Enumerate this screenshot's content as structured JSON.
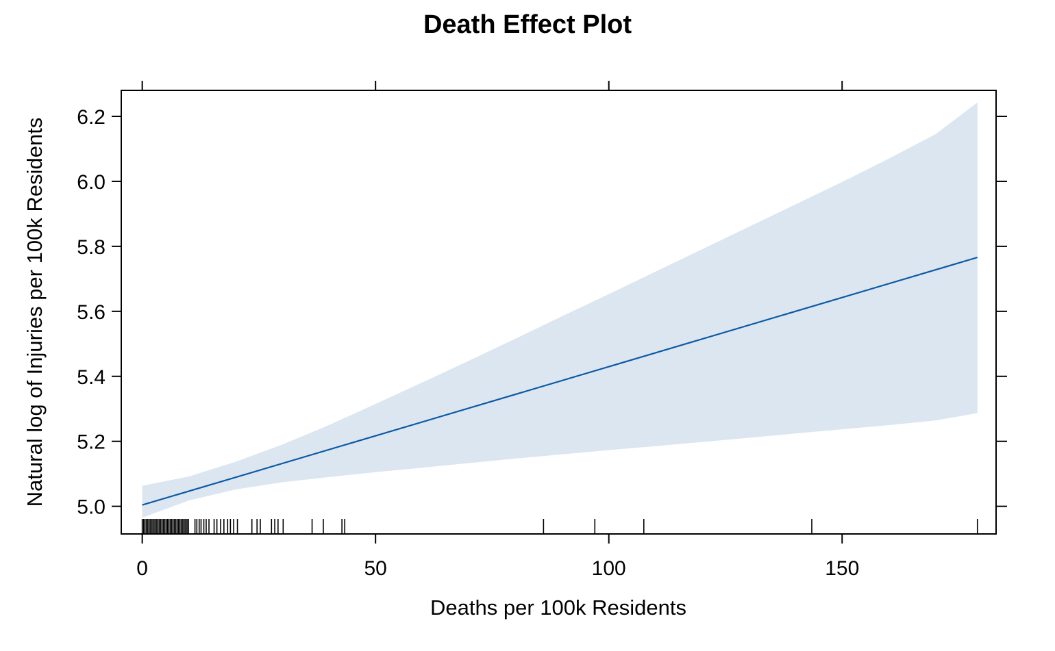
{
  "chart_data": {
    "type": "line",
    "title": "Death Effect Plot",
    "xlabel": "Deaths per 100k Residents",
    "ylabel": "Natural log of Injuries per 100k Residents",
    "xlim": [
      -4.5,
      183
    ],
    "ylim": [
      4.915,
      6.28
    ],
    "x_ticks": [
      0,
      50,
      100,
      150
    ],
    "x_tick_labels": [
      "0",
      "50",
      "100",
      "150"
    ],
    "y_ticks": [
      5.0,
      5.2,
      5.4,
      5.6,
      5.8,
      6.0,
      6.2
    ],
    "y_tick_labels": [
      "5.0",
      "5.2",
      "5.4",
      "5.6",
      "5.8",
      "6.0",
      "6.2"
    ],
    "grid": false,
    "colors": {
      "line": "#0b5aa6",
      "band": "#dbe6f0",
      "axis": "#000000"
    },
    "series": [
      {
        "x": [
          0,
          179
        ],
        "y": [
          5.004,
          5.766
        ]
      }
    ],
    "confidence_band": {
      "x": [
        0,
        10,
        20,
        30,
        40,
        50,
        60,
        70,
        80,
        90,
        100,
        110,
        120,
        130,
        140,
        150,
        160,
        170,
        179
      ],
      "lower": [
        4.965,
        5.018,
        5.052,
        5.074,
        5.09,
        5.105,
        5.119,
        5.133,
        5.147,
        5.16,
        5.173,
        5.185,
        5.198,
        5.211,
        5.224,
        5.237,
        5.25,
        5.264,
        5.287
      ],
      "upper": [
        5.063,
        5.092,
        5.137,
        5.19,
        5.25,
        5.315,
        5.381,
        5.448,
        5.516,
        5.585,
        5.653,
        5.722,
        5.791,
        5.86,
        5.929,
        5.998,
        6.07,
        6.145,
        6.243
      ]
    },
    "rug": [
      0,
      0.3,
      0.6,
      0.9,
      1.2,
      1.5,
      1.8,
      2.1,
      2.4,
      2.7,
      3.0,
      3.3,
      3.6,
      3.9,
      4.2,
      4.5,
      4.8,
      5.1,
      5.4,
      5.7,
      6.0,
      6.3,
      6.6,
      6.9,
      7.2,
      7.5,
      7.8,
      8.1,
      8.4,
      8.7,
      9.0,
      9.3,
      9.6,
      9.9,
      11.3,
      11.7,
      12.2,
      12.6,
      13.2,
      13.7,
      14.3,
      15.4,
      16.0,
      16.8,
      17.5,
      18.3,
      18.9,
      19.6,
      20.4,
      23.5,
      24.6,
      25.3,
      27.7,
      28.4,
      29.1,
      30.2,
      36.4,
      38.8,
      42.8,
      43.4
    ],
    "rug_extra_ticks": [
      86,
      97,
      107.5,
      143.5,
      179
    ]
  }
}
